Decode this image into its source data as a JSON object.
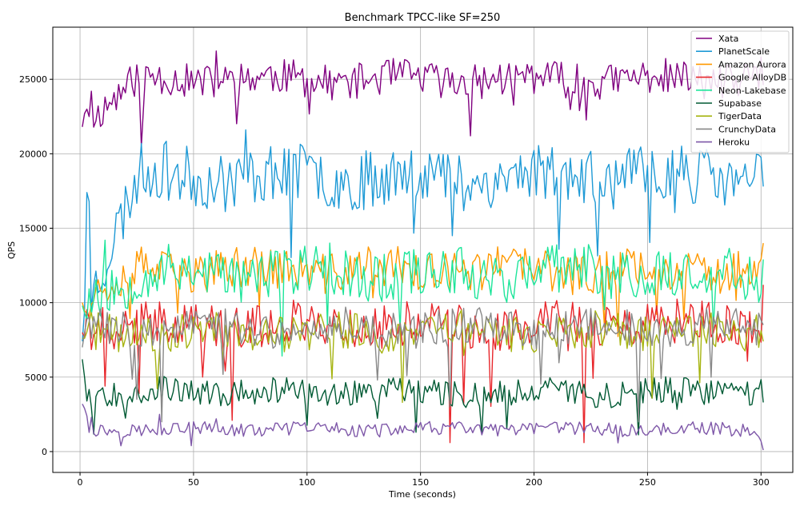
{
  "chart_data": {
    "type": "line",
    "title": "Benchmark TPCC-like SF=250",
    "xlabel": "Time (seconds)",
    "ylabel": "QPS",
    "xlim": [
      -12,
      314
    ],
    "ylim": [
      -1400,
      28500
    ],
    "xticks": [
      0,
      50,
      100,
      150,
      200,
      250,
      300
    ],
    "yticks": [
      0,
      5000,
      10000,
      15000,
      20000,
      25000
    ],
    "grid": true,
    "legend_position": "top-right",
    "x_start": 1,
    "x_end": 301,
    "x_step": 1,
    "series": [
      {
        "name": "Xata",
        "color": "#800080",
        "base": 25000,
        "amp": 1200,
        "ramp": 3000,
        "seed": 11,
        "points": [
          [
            1,
            21800
          ],
          [
            2,
            22700
          ],
          [
            3,
            23000
          ],
          [
            4,
            22500
          ],
          [
            5,
            24200
          ],
          [
            27,
            20500
          ],
          [
            28,
            23200
          ],
          [
            60,
            26900
          ],
          [
            220,
            22900
          ],
          [
            300,
            26500
          ]
        ]
      },
      {
        "name": "PlanetScale",
        "color": "#1f9ad6",
        "base": 18500,
        "amp": 2000,
        "ramp": 9000,
        "seed": 23,
        "points": [
          [
            1,
            7400
          ],
          [
            2,
            9500
          ],
          [
            3,
            17400
          ],
          [
            4,
            16800
          ],
          [
            73,
            21600
          ],
          [
            164,
            14500
          ],
          [
            301,
            17800
          ]
        ]
      },
      {
        "name": "Amazon Aurora",
        "color": "#ff9900",
        "base": 12200,
        "amp": 1400,
        "ramp": 2000,
        "seed": 37,
        "points": [
          [
            1,
            10000
          ],
          [
            43,
            9300
          ],
          [
            301,
            14000
          ]
        ]
      },
      {
        "name": "Google AlloyDB",
        "color": "#e8262b",
        "base": 8500,
        "amp": 1500,
        "ramp": 0,
        "seed": 41,
        "points": [
          [
            1,
            8000
          ],
          [
            67,
            2100
          ],
          [
            163,
            600
          ],
          [
            222,
            600
          ],
          [
            301,
            11200
          ]
        ]
      },
      {
        "name": "Neon-Lakebase",
        "color": "#1de59a",
        "base": 12000,
        "amp": 1700,
        "ramp": 2000,
        "seed": 53,
        "points": [
          [
            1,
            9800
          ],
          [
            11,
            14200
          ],
          [
            110,
            14000
          ],
          [
            301,
            12900
          ]
        ]
      },
      {
        "name": "Supabase",
        "color": "#005a34",
        "base": 4000,
        "amp": 900,
        "ramp": 0,
        "seed": 67,
        "points": [
          [
            1,
            6200
          ],
          [
            2,
            5000
          ],
          [
            301,
            3300
          ]
        ]
      },
      {
        "name": "TigerData",
        "color": "#a6b411",
        "base": 8000,
        "amp": 1300,
        "ramp": 0,
        "seed": 71,
        "points": [
          [
            1,
            7600
          ],
          [
            301,
            7400
          ]
        ]
      },
      {
        "name": "CrunchyData",
        "color": "#888888",
        "base": 8300,
        "amp": 1200,
        "ramp": 0,
        "seed": 83,
        "points": [
          [
            1,
            7000
          ],
          [
            36,
            2000
          ],
          [
            163,
            3000
          ],
          [
            246,
            2000
          ],
          [
            301,
            8500
          ]
        ]
      },
      {
        "name": "Heroku",
        "color": "#7e57a8",
        "base": 1500,
        "amp": 450,
        "ramp": 0,
        "seed": 97,
        "points": [
          [
            1,
            3200
          ],
          [
            2,
            2900
          ],
          [
            3,
            2400
          ],
          [
            5,
            2300
          ],
          [
            35,
            2500
          ],
          [
            60,
            2200
          ],
          [
            85,
            1400
          ],
          [
            130,
            1800
          ],
          [
            200,
            1200
          ],
          [
            260,
            1300
          ],
          [
            296,
            1200
          ],
          [
            299,
            1000
          ],
          [
            300,
            700
          ],
          [
            301,
            100
          ]
        ]
      }
    ]
  }
}
